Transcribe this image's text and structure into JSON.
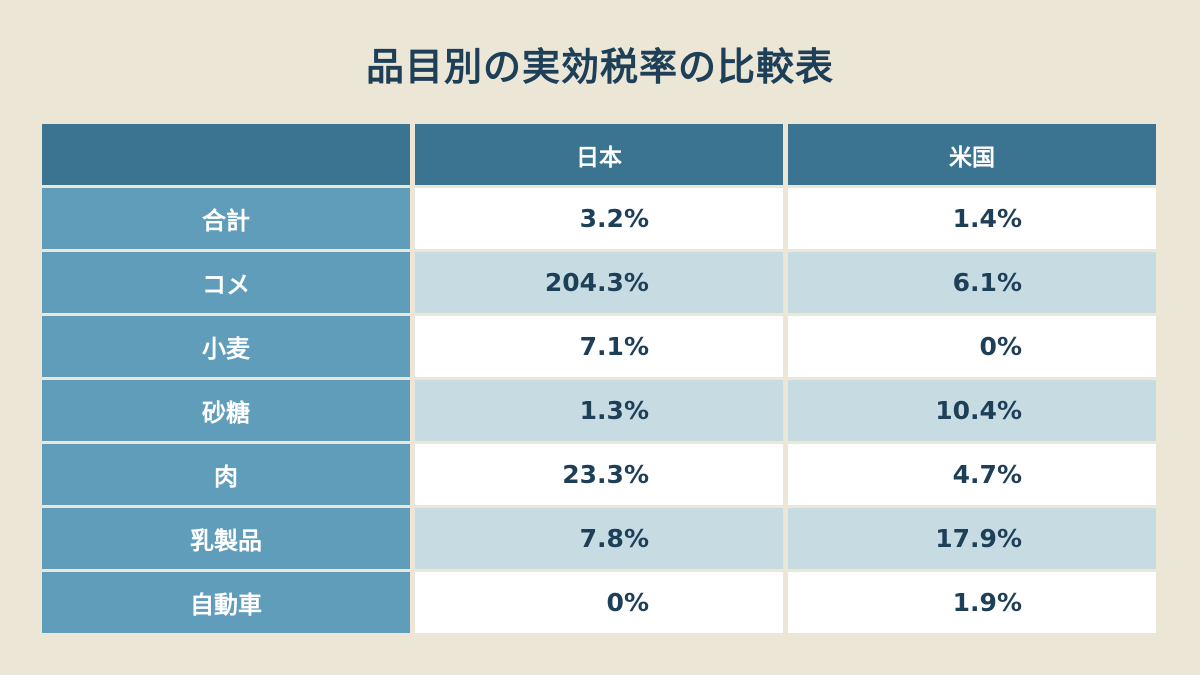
{
  "title": "品目別の実効税率の比較表",
  "colors": {
    "background": "#ece6d6",
    "header": "#3b7491",
    "row_label": "#5f9dbb",
    "row_light": "#ffffff",
    "row_tint": "#c6dce2",
    "text_dark": "#1d3f57"
  },
  "chart_data": {
    "type": "table",
    "title": "品目別の実効税率の比較表",
    "columns": [
      "",
      "日本",
      "米国"
    ],
    "rows": [
      {
        "label": "合計",
        "values": [
          "3.2%",
          "1.4%"
        ]
      },
      {
        "label": "コメ",
        "values": [
          "204.3%",
          "6.1%"
        ]
      },
      {
        "label": "小麦",
        "values": [
          "7.1%",
          "0%"
        ]
      },
      {
        "label": "砂糖",
        "values": [
          "1.3%",
          "10.4%"
        ]
      },
      {
        "label": "肉",
        "values": [
          "23.3%",
          "4.7%"
        ]
      },
      {
        "label": "乳製品",
        "values": [
          "7.8%",
          "17.9%"
        ]
      },
      {
        "label": "自動車",
        "values": [
          "0%",
          "1.9%"
        ]
      }
    ]
  }
}
